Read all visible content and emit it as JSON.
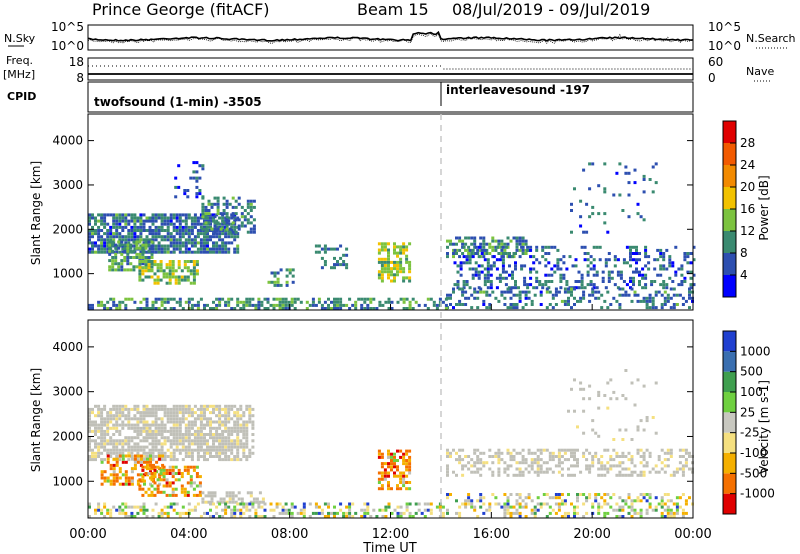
{
  "header": {
    "station": "Prince George (fitACF)",
    "beam": "Beam 15",
    "date_range": "08/Jul/2019 - 09/Jul/2019"
  },
  "left_labels": {
    "nsky": "N.Sky",
    "freq": "Freq.",
    "mhz": "[MHz]",
    "cpid": "CPID"
  },
  "right_labels": {
    "nsearch": "N.Search",
    "nave": "Nave"
  },
  "cpid_segments": [
    {
      "label": "twofsound (1-min) -3505",
      "start_hour": 0
    },
    {
      "label": "interleavesound -197",
      "start_hour": 14.1
    }
  ],
  "chart_data": [
    {
      "type": "line",
      "panel": "noise",
      "y_left_ticks": [
        "10^5",
        "10^0"
      ],
      "y_right_ticks": [
        "10^5",
        "10^0"
      ],
      "series": [
        {
          "name": "N.Sky",
          "style": "solid"
        },
        {
          "name": "N.Search",
          "style": "dotted"
        }
      ]
    },
    {
      "type": "line",
      "panel": "frequency",
      "y_left_ticks": [
        "18",
        "8"
      ],
      "y_right_ticks": [
        "60",
        "0"
      ],
      "series": [
        {
          "name": "Freq.",
          "style": "solid"
        },
        {
          "name": "Nave",
          "style": "dotted"
        }
      ]
    },
    {
      "type": "heatmap",
      "panel": "power",
      "ylabel": "Slant Range [km]",
      "xlabel": "",
      "ylim": [
        180,
        4600
      ],
      "y_ticks": [
        "1000",
        "2000",
        "3000",
        "4000"
      ],
      "colorbar_label": "Power [dB]",
      "colorbar_ticks": [
        "4",
        "8",
        "12",
        "16",
        "20",
        "24",
        "28"
      ],
      "colorbar_colors": [
        "#0000ff",
        "#2d4fb0",
        "#3a8a70",
        "#7cc33f",
        "#f2c200",
        "#f28a00",
        "#f25a00",
        "#e00000"
      ],
      "regions": [
        {
          "t0": 0.0,
          "t1": 5.9,
          "r0": 1450,
          "r1": 2300,
          "density": 0.8,
          "level": 6
        },
        {
          "t0": 0.8,
          "t1": 2.5,
          "r0": 1050,
          "r1": 1700,
          "density": 0.6,
          "level": 9
        },
        {
          "t0": 2.0,
          "t1": 4.3,
          "r0": 750,
          "r1": 1250,
          "density": 0.6,
          "level": 12
        },
        {
          "t0": 3.3,
          "t1": 4.6,
          "r0": 2700,
          "r1": 3500,
          "density": 0.25,
          "level": 5
        },
        {
          "t0": 4.5,
          "t1": 6.6,
          "r0": 1900,
          "r1": 2700,
          "density": 0.5,
          "level": 7
        },
        {
          "t0": 7.0,
          "t1": 8.1,
          "r0": 700,
          "r1": 1100,
          "density": 0.3,
          "level": 8
        },
        {
          "t0": 9.0,
          "t1": 10.2,
          "r0": 1100,
          "r1": 1600,
          "density": 0.35,
          "level": 6
        },
        {
          "t0": 11.5,
          "t1": 12.8,
          "r0": 800,
          "r1": 1650,
          "density": 0.6,
          "level": 13
        },
        {
          "t0": 14.2,
          "t1": 17.5,
          "r0": 1350,
          "r1": 1800,
          "density": 0.55,
          "level": 8
        },
        {
          "t0": 14.5,
          "t1": 24.0,
          "r0": 650,
          "r1": 1600,
          "density": 0.35,
          "level": 5
        },
        {
          "t0": 14.2,
          "t1": 24.0,
          "r0": 200,
          "r1": 650,
          "density": 0.35,
          "level": 6
        },
        {
          "t0": 19.0,
          "t1": 22.5,
          "r0": 1900,
          "r1": 3500,
          "density": 0.08,
          "level": 5
        },
        {
          "t0": 0.0,
          "t1": 14.2,
          "r0": 180,
          "r1": 450,
          "density": 0.55,
          "level": 8
        }
      ]
    },
    {
      "type": "heatmap",
      "panel": "velocity",
      "ylabel": "Slant Range [km]",
      "xlabel": "Time UT",
      "ylim": [
        180,
        4600
      ],
      "y_ticks": [
        "1000",
        "2000",
        "3000",
        "4000"
      ],
      "x_ticks": [
        "00:00",
        "04:00",
        "08:00",
        "12:00",
        "16:00",
        "20:00",
        "00:00"
      ],
      "colorbar_label": "Velocity [m s-1]",
      "colorbar_ticks": [
        "1000",
        "500",
        "100",
        "25",
        "-25",
        "-100",
        "-500",
        "-1000"
      ],
      "colorbar_colors": [
        "#2040d0",
        "#3a6fb0",
        "#3f9f4f",
        "#6fd040",
        "#c8c8c0",
        "#f5e080",
        "#f5b000",
        "#f57000",
        "#e00000"
      ],
      "regions": [
        {
          "t0": 0.0,
          "t1": 6.6,
          "r0": 1450,
          "r1": 2700,
          "density": 0.75,
          "level": "gray"
        },
        {
          "t0": 0.5,
          "t1": 3.0,
          "r0": 900,
          "r1": 1600,
          "density": 0.55,
          "level": "orange"
        },
        {
          "t0": 2.0,
          "t1": 4.5,
          "r0": 650,
          "r1": 1350,
          "density": 0.55,
          "level": "orange"
        },
        {
          "t0": 4.5,
          "t1": 7.0,
          "r0": 500,
          "r1": 750,
          "density": 0.5,
          "level": "gray"
        },
        {
          "t0": 11.5,
          "t1": 12.8,
          "r0": 800,
          "r1": 1650,
          "density": 0.6,
          "level": "orange"
        },
        {
          "t0": 14.2,
          "t1": 24.0,
          "r0": 1100,
          "r1": 1700,
          "density": 0.45,
          "level": "gray"
        },
        {
          "t0": 14.2,
          "t1": 24.0,
          "r0": 180,
          "r1": 700,
          "density": 0.4,
          "level": "mixed"
        },
        {
          "t0": 0.0,
          "t1": 14.2,
          "r0": 180,
          "r1": 500,
          "density": 0.45,
          "level": "mixed"
        },
        {
          "t0": 19.0,
          "t1": 22.5,
          "r0": 1900,
          "r1": 3500,
          "density": 0.08,
          "level": "gray"
        }
      ]
    }
  ],
  "colors": {
    "ground_scatter": "#c0c0b8",
    "axis": "#000000",
    "divider": "#c8c8c8"
  }
}
